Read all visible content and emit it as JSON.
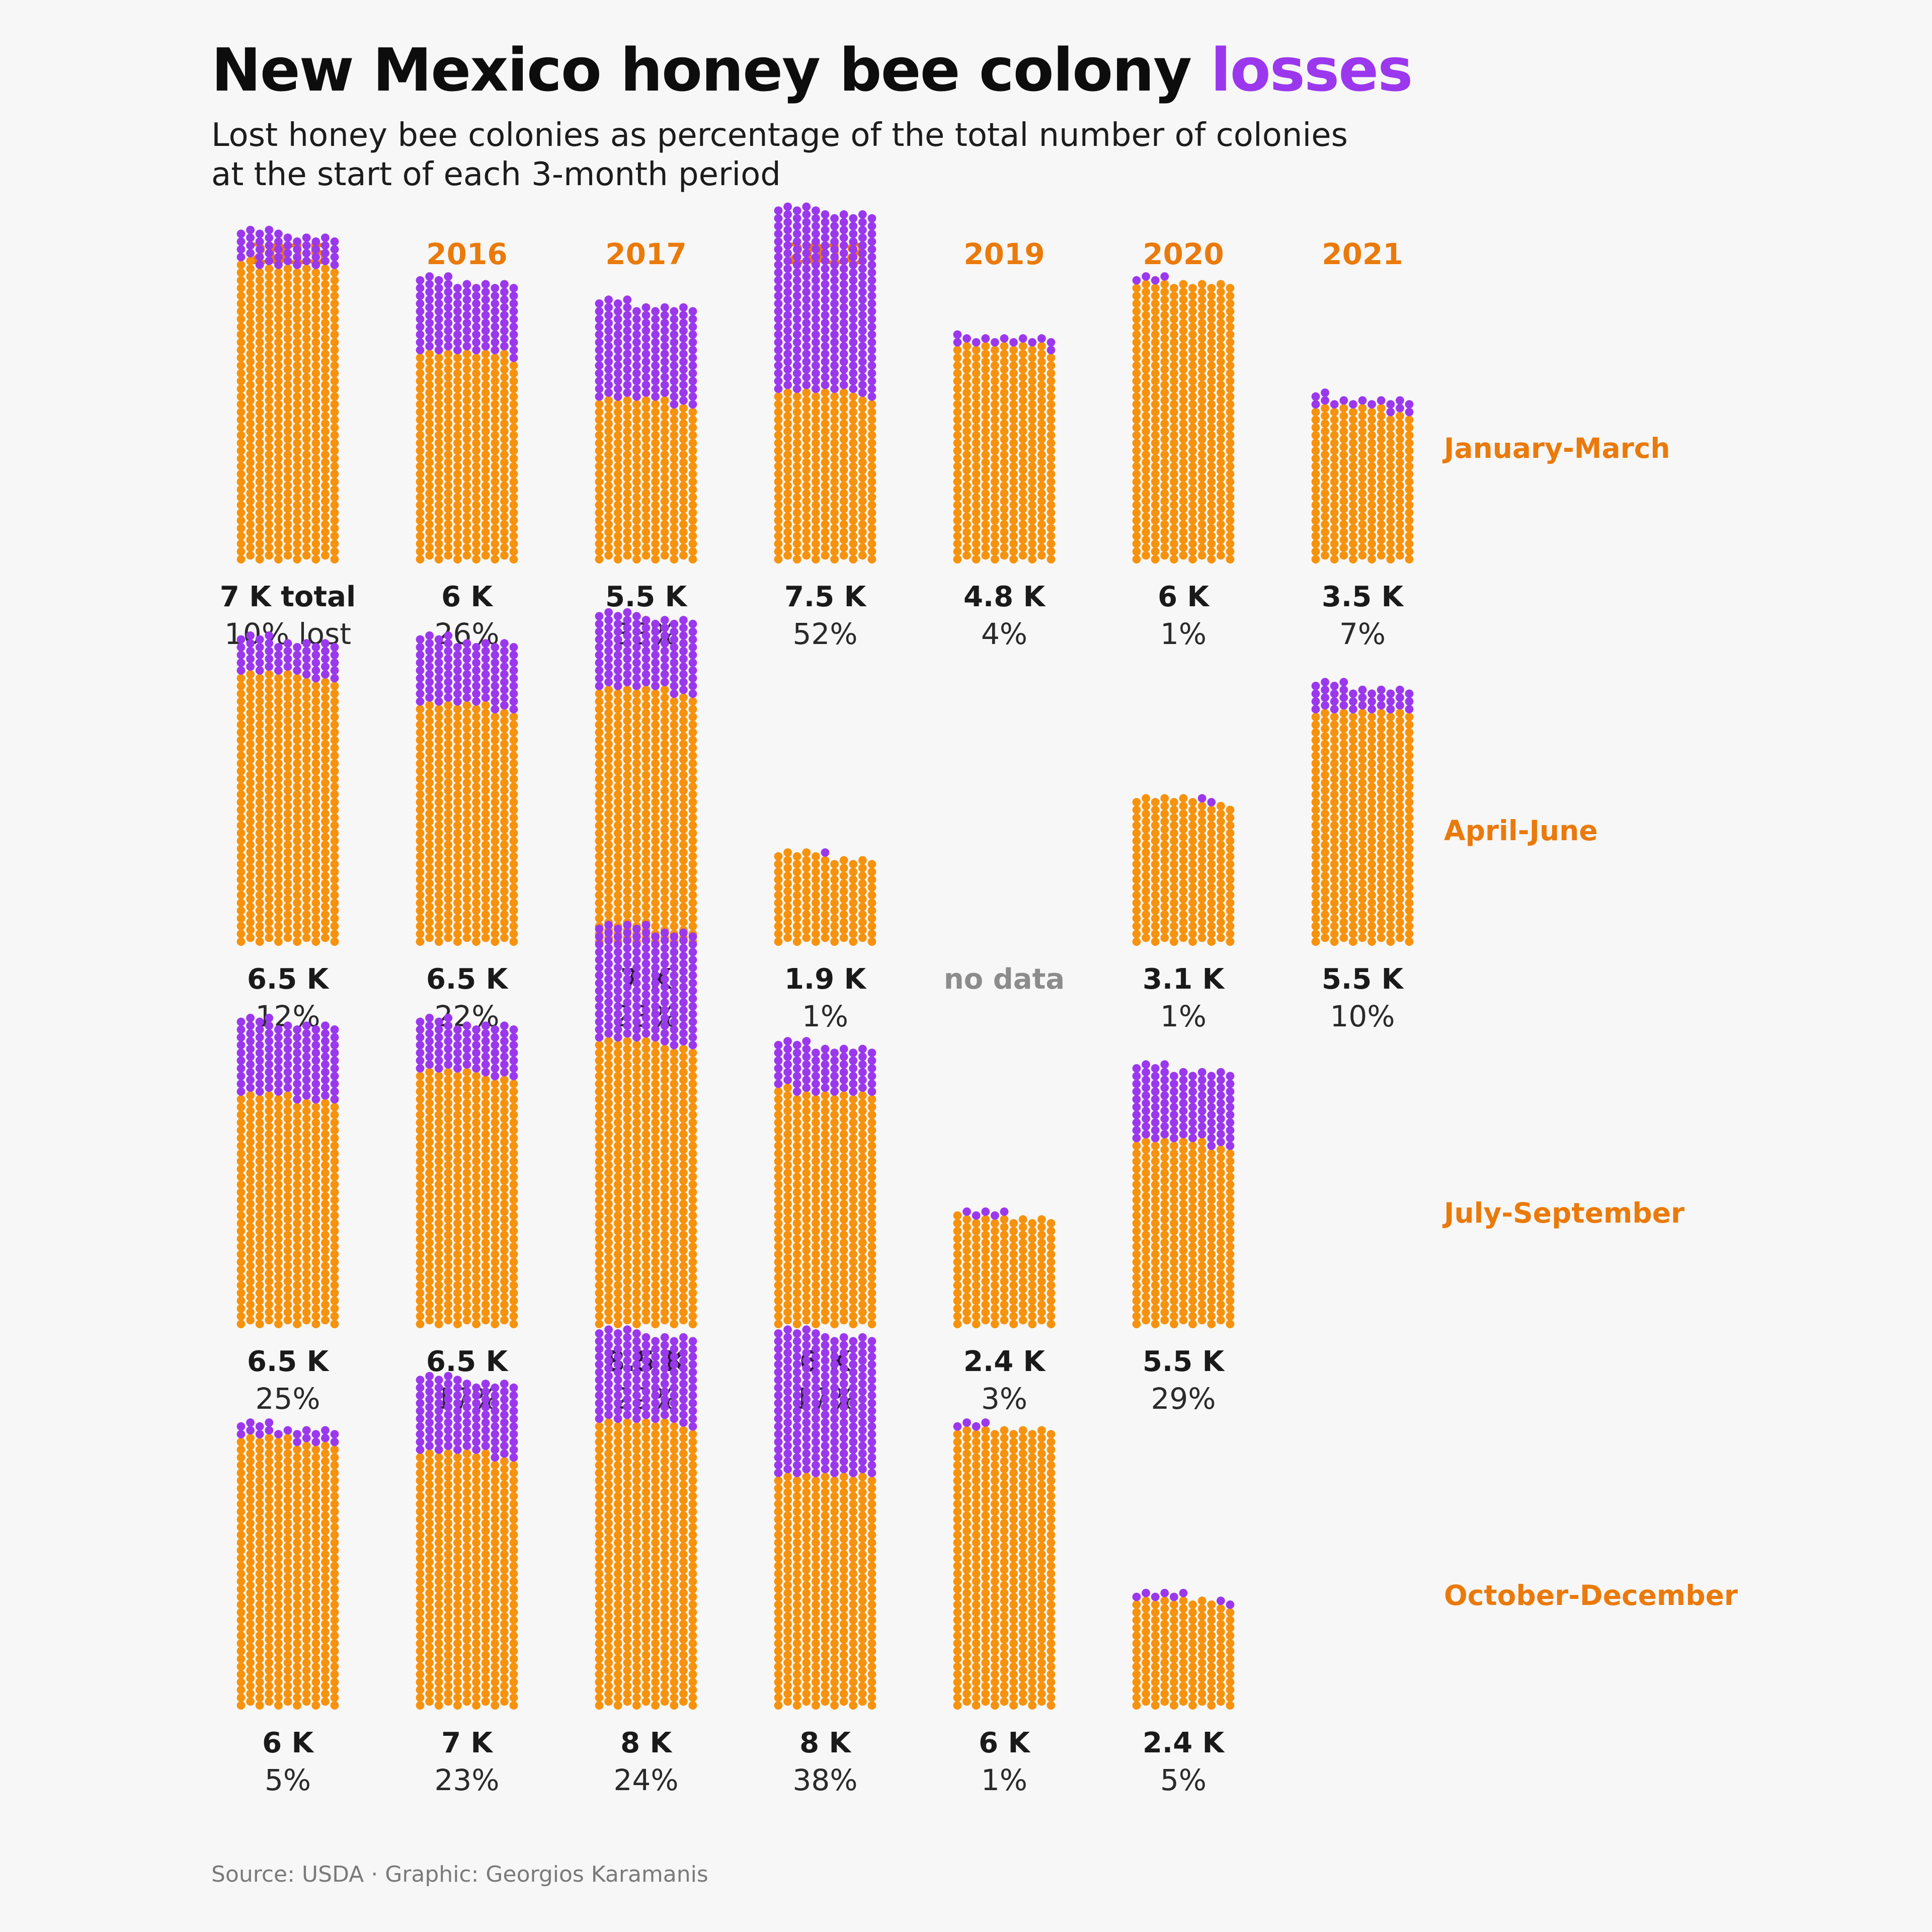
{
  "header": {
    "title_main": "New Mexico honey bee colony ",
    "title_accent": "losses",
    "subtitle_line1": "Lost honey bee colonies as percentage of the total number of colonies",
    "subtitle_line2": "at the start of each 3-month period"
  },
  "footer": {
    "source": "Source: USDA · Graphic: Georgios Karamanis"
  },
  "colors": {
    "kept": "#f7920d",
    "lost": "#9b38ee",
    "accent": "#ea7a0b",
    "background": "#f7f7f7"
  },
  "chart_data": {
    "type": "waffle",
    "years": [
      "2015",
      "2016",
      "2017",
      "2018",
      "2019",
      "2020",
      "2021"
    ],
    "periods": [
      "January-March",
      "April-June",
      "July-September",
      "October-December"
    ],
    "no_data_label": "no data",
    "cells": [
      [
        {
          "total": 7000,
          "lost_pct": 10,
          "total_label": "7 K total",
          "lost_label": "10% lost"
        },
        {
          "total": 6000,
          "lost_pct": 26,
          "total_label": "6 K",
          "lost_label": "26%"
        },
        {
          "total": 5500,
          "lost_pct": 38,
          "total_label": "5.5 K",
          "lost_label": "38%"
        },
        {
          "total": 7500,
          "lost_pct": 52,
          "total_label": "7.5 K",
          "lost_label": "52%"
        },
        {
          "total": 4800,
          "lost_pct": 4,
          "total_label": "4.8 K",
          "lost_label": "4%"
        },
        {
          "total": 6000,
          "lost_pct": 1,
          "total_label": "6 K",
          "lost_label": "1%"
        },
        {
          "total": 3500,
          "lost_pct": 7,
          "total_label": "3.5 K",
          "lost_label": "7%"
        }
      ],
      [
        {
          "total": 6500,
          "lost_pct": 12,
          "total_label": "6.5 K",
          "lost_label": "12%"
        },
        {
          "total": 6500,
          "lost_pct": 22,
          "total_label": "6.5 K",
          "lost_label": "22%"
        },
        {
          "total": 7000,
          "lost_pct": 23,
          "total_label": "7 K",
          "lost_label": "23%"
        },
        {
          "total": 1900,
          "lost_pct": 1,
          "total_label": "1.9 K",
          "lost_label": "1%"
        },
        null,
        {
          "total": 3100,
          "lost_pct": 1,
          "total_label": "3.1 K",
          "lost_label": "1%"
        },
        {
          "total": 5500,
          "lost_pct": 10,
          "total_label": "5.5 K",
          "lost_label": "10%"
        }
      ],
      [
        {
          "total": 6500,
          "lost_pct": 25,
          "total_label": "6.5 K",
          "lost_label": "25%"
        },
        {
          "total": 6500,
          "lost_pct": 17,
          "total_label": "6.5 K",
          "lost_label": "17%"
        },
        {
          "total": 8500,
          "lost_pct": 29,
          "total_label": "8.5 K",
          "lost_label": "29%"
        },
        {
          "total": 6000,
          "lost_pct": 17,
          "total_label": "6 K",
          "lost_label": "17%"
        },
        {
          "total": 2400,
          "lost_pct": 3,
          "total_label": "2.4 K",
          "lost_label": "3%"
        },
        {
          "total": 5500,
          "lost_pct": 29,
          "total_label": "5.5 K",
          "lost_label": "29%"
        },
        {
          "missing": true
        }
      ],
      [
        {
          "total": 6000,
          "lost_pct": 5,
          "total_label": "6 K",
          "lost_label": "5%"
        },
        {
          "total": 7000,
          "lost_pct": 23,
          "total_label": "7 K",
          "lost_label": "23%"
        },
        {
          "total": 8000,
          "lost_pct": 24,
          "total_label": "8 K",
          "lost_label": "24%"
        },
        {
          "total": 8000,
          "lost_pct": 38,
          "total_label": "8 K",
          "lost_label": "38%"
        },
        {
          "total": 6000,
          "lost_pct": 1,
          "total_label": "6 K",
          "lost_label": "1%"
        },
        {
          "total": 2400,
          "lost_pct": 5,
          "total_label": "2.4 K",
          "lost_label": "5%"
        },
        {
          "missing": true
        }
      ]
    ]
  }
}
